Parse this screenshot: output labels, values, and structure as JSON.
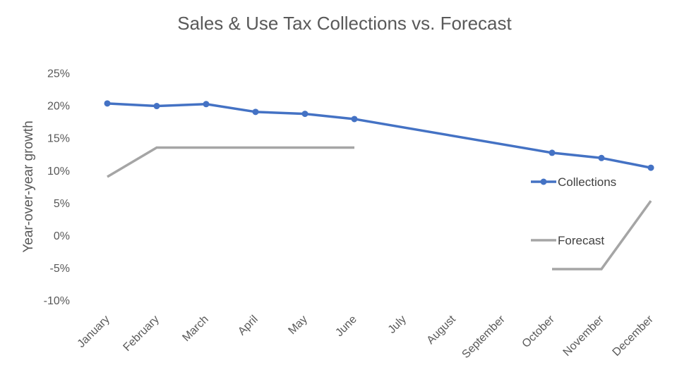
{
  "chart_data": {
    "type": "line",
    "title": "Sales & Use Tax Collections vs. Forecast",
    "xlabel": "",
    "ylabel": "Year-over-year growth",
    "categories": [
      "January",
      "February",
      "March",
      "April",
      "May",
      "June",
      "July",
      "August",
      "September",
      "October",
      "November",
      "December"
    ],
    "ylim": [
      -10,
      25
    ],
    "y_ticks": [
      -10,
      -5,
      0,
      5,
      10,
      15,
      20,
      25
    ],
    "y_tick_labels": [
      "-10%",
      "-5%",
      "0%",
      "5%",
      "10%",
      "15%",
      "20%",
      "25%"
    ],
    "grid": false,
    "legend_position": "right",
    "series": [
      {
        "name": "Collections",
        "color": "#4472C4",
        "marker": "circle",
        "values": [
          20.3,
          19.9,
          20.2,
          19.0,
          18.7,
          17.9,
          null,
          null,
          null,
          12.7,
          11.9,
          10.4
        ],
        "span_gaps": true
      },
      {
        "name": "Forecast",
        "color": "#A5A5A5",
        "marker": "none",
        "values": [
          9.0,
          13.5,
          13.5,
          13.5,
          13.5,
          13.5,
          null,
          null,
          null,
          -5.2,
          -5.2,
          5.3
        ],
        "span_gaps": false
      }
    ]
  }
}
